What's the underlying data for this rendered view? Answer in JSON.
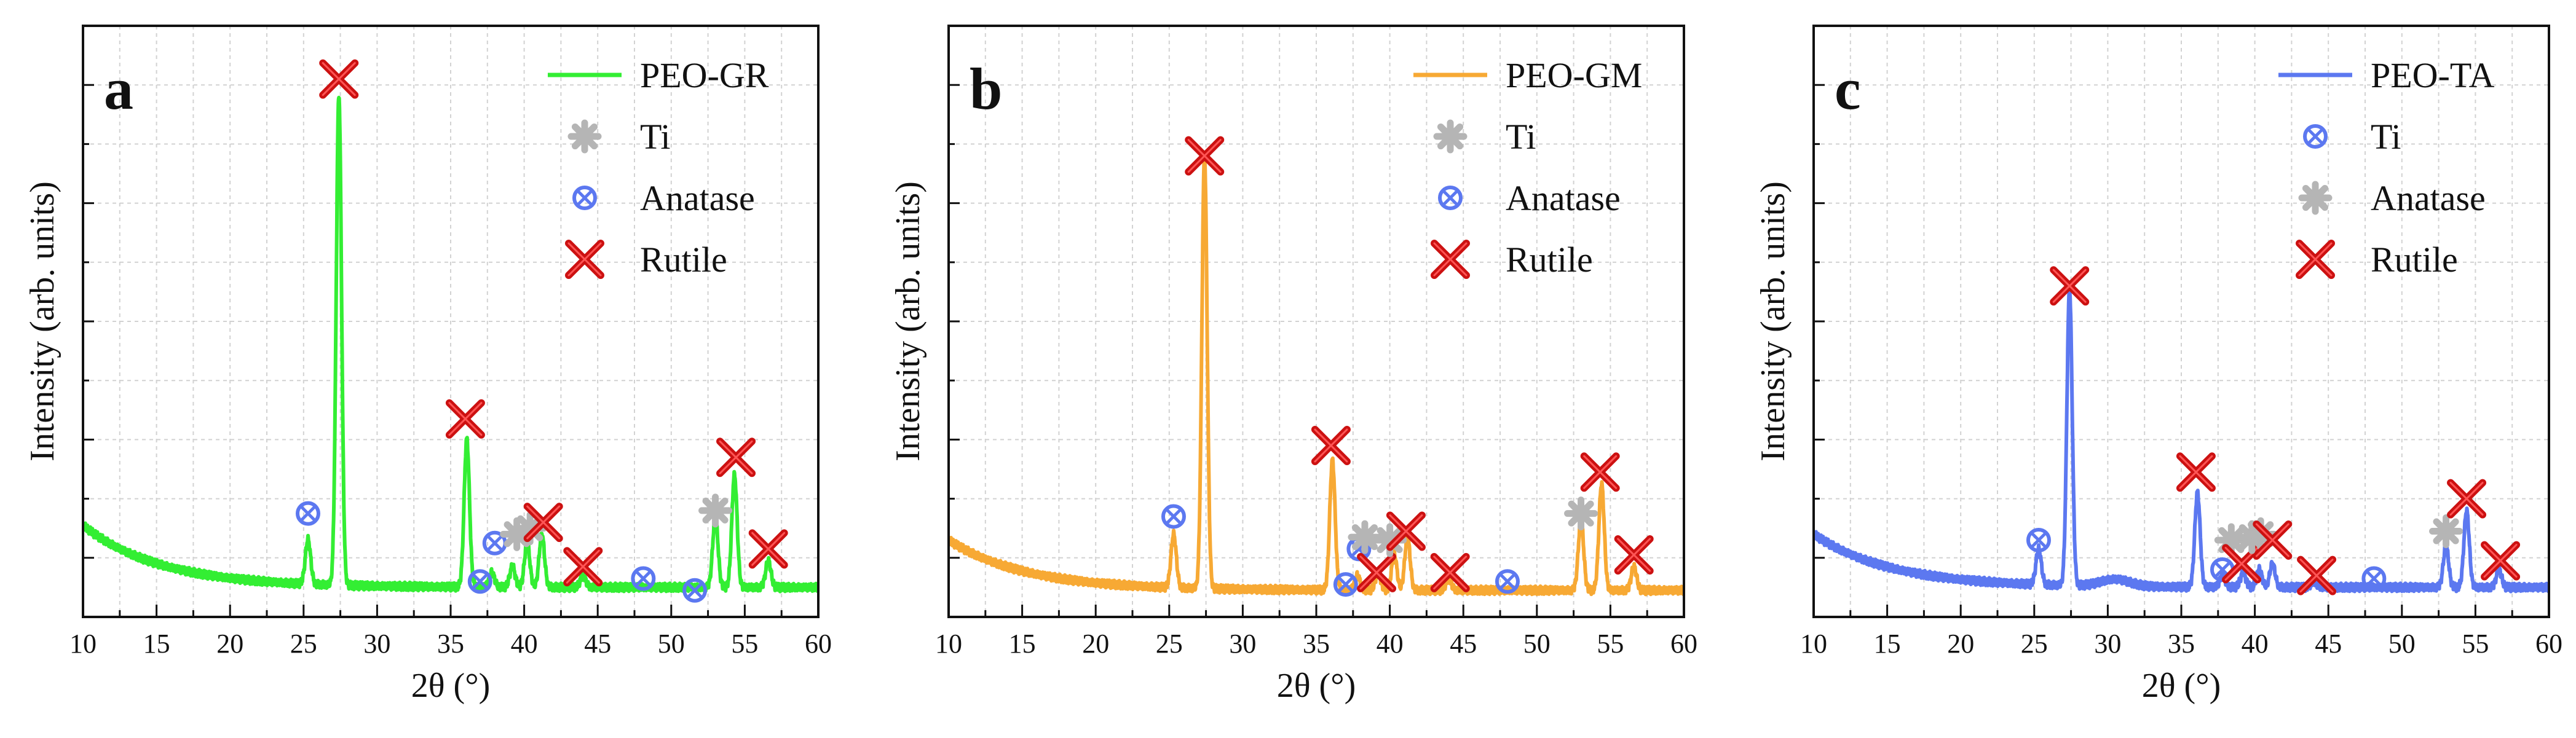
{
  "chart_data": [
    {
      "type": "line",
      "panel_label": "a",
      "xlabel": "2θ (°)",
      "ylabel": "Intensity (arb. units)",
      "xlim": [
        10,
        60
      ],
      "ylim": [
        0,
        1.0
      ],
      "xticks": [
        10,
        15,
        20,
        25,
        30,
        35,
        40,
        45,
        50,
        55,
        60
      ],
      "grid": true,
      "legend_position": "top-right",
      "series": [
        {
          "name": "PEO-GR",
          "color": "#33ee33"
        }
      ],
      "background": {
        "start": 0.155,
        "decay": 0.19,
        "end": 0.05
      },
      "peaks": [
        {
          "x": 25.3,
          "height": 0.075,
          "width": 0.18
        },
        {
          "x": 27.4,
          "height": 0.83,
          "width": 0.18
        },
        {
          "x": 36.1,
          "height": 0.25,
          "width": 0.18
        },
        {
          "x": 37.8,
          "height": 0.025,
          "width": 0.18
        },
        {
          "x": 39.2,
          "height": 0.035,
          "width": 0.18
        },
        {
          "x": 40.2,
          "height": 0.075,
          "width": 0.18
        },
        {
          "x": 41.2,
          "height": 0.09,
          "width": 0.18
        },
        {
          "x": 44.0,
          "height": 0.02,
          "width": 0.18
        },
        {
          "x": 53.0,
          "height": 0.12,
          "width": 0.18
        },
        {
          "x": 54.3,
          "height": 0.19,
          "width": 0.18
        },
        {
          "x": 56.6,
          "height": 0.045,
          "width": 0.18
        }
      ],
      "legend": [
        {
          "label": "PEO-GR",
          "kind": "line",
          "color": "#33ee33"
        },
        {
          "label": "Ti",
          "kind": "star",
          "color": "#b5b5b5"
        },
        {
          "label": "Anatase",
          "kind": "circlex",
          "color": "#5c78f0"
        },
        {
          "label": "Rutile",
          "kind": "bigx",
          "color": "#cc1111"
        }
      ],
      "markers": [
        {
          "kind": "circlex",
          "x": 25.3,
          "y": 0.175
        },
        {
          "kind": "bigx",
          "x": 27.4,
          "y": 0.91
        },
        {
          "kind": "bigx",
          "x": 36.0,
          "y": 0.335
        },
        {
          "kind": "circlex",
          "x": 37.0,
          "y": 0.06
        },
        {
          "kind": "circlex",
          "x": 38.0,
          "y": 0.125
        },
        {
          "kind": "star",
          "x": 39.5,
          "y": 0.14
        },
        {
          "kind": "star",
          "x": 40.4,
          "y": 0.15
        },
        {
          "kind": "bigx",
          "x": 41.3,
          "y": 0.16
        },
        {
          "kind": "bigx",
          "x": 44.0,
          "y": 0.085
        },
        {
          "kind": "circlex",
          "x": 48.1,
          "y": 0.065
        },
        {
          "kind": "circlex",
          "x": 51.6,
          "y": 0.045
        },
        {
          "kind": "star",
          "x": 53.0,
          "y": 0.18
        },
        {
          "kind": "bigx",
          "x": 54.4,
          "y": 0.27
        },
        {
          "kind": "bigx",
          "x": 56.6,
          "y": 0.115
        }
      ]
    },
    {
      "type": "line",
      "panel_label": "b",
      "xlabel": "2θ (°)",
      "ylabel": "Intensity (arb. units)",
      "xlim": [
        10,
        60
      ],
      "ylim": [
        0,
        1.0
      ],
      "xticks": [
        10,
        15,
        20,
        25,
        30,
        35,
        40,
        45,
        50,
        55,
        60
      ],
      "grid": true,
      "legend_position": "top-right",
      "series": [
        {
          "name": "PEO-GM",
          "color": "#f7a934"
        }
      ],
      "background": {
        "start": 0.13,
        "decay": 0.19,
        "end": 0.045
      },
      "peaks": [
        {
          "x": 25.3,
          "height": 0.09,
          "width": 0.18
        },
        {
          "x": 27.4,
          "height": 0.73,
          "width": 0.18
        },
        {
          "x": 36.1,
          "height": 0.22,
          "width": 0.18
        },
        {
          "x": 37.8,
          "height": 0.025,
          "width": 0.18
        },
        {
          "x": 39.2,
          "height": 0.03,
          "width": 0.18
        },
        {
          "x": 40.3,
          "height": 0.06,
          "width": 0.18
        },
        {
          "x": 41.2,
          "height": 0.09,
          "width": 0.18
        },
        {
          "x": 44.0,
          "height": 0.02,
          "width": 0.18
        },
        {
          "x": 53.0,
          "height": 0.12,
          "width": 0.18
        },
        {
          "x": 54.4,
          "height": 0.18,
          "width": 0.18
        },
        {
          "x": 56.6,
          "height": 0.04,
          "width": 0.18
        }
      ],
      "legend": [
        {
          "label": "PEO-GM",
          "kind": "line",
          "color": "#f7a934"
        },
        {
          "label": "Ti",
          "kind": "star",
          "color": "#b5b5b5"
        },
        {
          "label": "Anatase",
          "kind": "circlex",
          "color": "#5c78f0"
        },
        {
          "label": "Rutile",
          "kind": "bigx",
          "color": "#cc1111"
        }
      ],
      "markers": [
        {
          "kind": "circlex",
          "x": 25.3,
          "y": 0.17
        },
        {
          "kind": "bigx",
          "x": 27.4,
          "y": 0.78
        },
        {
          "kind": "bigx",
          "x": 36.0,
          "y": 0.29
        },
        {
          "kind": "circlex",
          "x": 37.0,
          "y": 0.055
        },
        {
          "kind": "circlex",
          "x": 37.9,
          "y": 0.115
        },
        {
          "kind": "star",
          "x": 38.3,
          "y": 0.135
        },
        {
          "kind": "bigx",
          "x": 39.1,
          "y": 0.075
        },
        {
          "kind": "star",
          "x": 40.0,
          "y": 0.13
        },
        {
          "kind": "bigx",
          "x": 41.1,
          "y": 0.145
        },
        {
          "kind": "bigx",
          "x": 44.1,
          "y": 0.075
        },
        {
          "kind": "circlex",
          "x": 48.0,
          "y": 0.06
        },
        {
          "kind": "star",
          "x": 53.0,
          "y": 0.175
        },
        {
          "kind": "bigx",
          "x": 54.3,
          "y": 0.245
        },
        {
          "kind": "bigx",
          "x": 56.6,
          "y": 0.105
        }
      ]
    },
    {
      "type": "line",
      "panel_label": "c",
      "xlabel": "2θ (°)",
      "ylabel": "Intensity (arb. units)",
      "xlim": [
        10,
        60
      ],
      "ylim": [
        0,
        1.0
      ],
      "xticks": [
        10,
        15,
        20,
        25,
        30,
        35,
        40,
        45,
        50,
        55,
        60
      ],
      "grid": true,
      "legend_position": "top-right",
      "series": [
        {
          "name": "PEO-TA",
          "color": "#5c78f0"
        }
      ],
      "background": {
        "start": 0.14,
        "decay": 0.19,
        "end": 0.05
      },
      "peaks": [
        {
          "x": 25.3,
          "height": 0.06,
          "width": 0.18
        },
        {
          "x": 27.4,
          "height": 0.5,
          "width": 0.18
        },
        {
          "x": 30.5,
          "height": 0.012,
          "width": 1.0
        },
        {
          "x": 36.1,
          "height": 0.16,
          "width": 0.18
        },
        {
          "x": 37.8,
          "height": 0.02,
          "width": 0.18
        },
        {
          "x": 39.2,
          "height": 0.025,
          "width": 0.18
        },
        {
          "x": 40.3,
          "height": 0.03,
          "width": 0.18
        },
        {
          "x": 41.2,
          "height": 0.04,
          "width": 0.18
        },
        {
          "x": 44.0,
          "height": 0.01,
          "width": 0.18
        },
        {
          "x": 53.0,
          "height": 0.07,
          "width": 0.18
        },
        {
          "x": 54.4,
          "height": 0.13,
          "width": 0.18
        },
        {
          "x": 56.6,
          "height": 0.03,
          "width": 0.18
        }
      ],
      "legend": [
        {
          "label": "PEO-TA",
          "kind": "line",
          "color": "#5c78f0"
        },
        {
          "label": "Ti",
          "kind": "circlex",
          "color": "#5c78f0"
        },
        {
          "label": "Anatase",
          "kind": "star",
          "color": "#b5b5b5"
        },
        {
          "label": "Rutile",
          "kind": "bigx",
          "color": "#cc1111"
        }
      ],
      "markers": [
        {
          "kind": "circlex",
          "x": 25.3,
          "y": 0.13
        },
        {
          "kind": "bigx",
          "x": 27.4,
          "y": 0.56
        },
        {
          "kind": "bigx",
          "x": 36.0,
          "y": 0.245
        },
        {
          "kind": "circlex",
          "x": 37.8,
          "y": 0.08
        },
        {
          "kind": "star",
          "x": 38.4,
          "y": 0.13
        },
        {
          "kind": "bigx",
          "x": 39.1,
          "y": 0.09
        },
        {
          "kind": "star",
          "x": 39.8,
          "y": 0.135
        },
        {
          "kind": "star",
          "x": 40.4,
          "y": 0.14
        },
        {
          "kind": "bigx",
          "x": 41.2,
          "y": 0.13
        },
        {
          "kind": "bigx",
          "x": 44.2,
          "y": 0.07
        },
        {
          "kind": "circlex",
          "x": 48.1,
          "y": 0.065
        },
        {
          "kind": "star",
          "x": 53.0,
          "y": 0.145
        },
        {
          "kind": "bigx",
          "x": 54.4,
          "y": 0.2
        },
        {
          "kind": "bigx",
          "x": 56.7,
          "y": 0.095
        }
      ]
    }
  ]
}
